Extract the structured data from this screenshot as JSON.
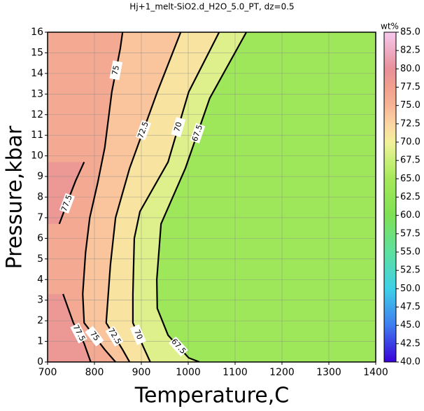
{
  "chart_data": {
    "type": "contour",
    "title": "Hj+1_melt-SiO2.d_H2O_5.0_PT, dz=0.5",
    "x_label": "Temperature,C",
    "y_label": "Pressure,kbar",
    "xlim": [
      700,
      1400
    ],
    "ylim": [
      0,
      16
    ],
    "xticks": [
      700,
      800,
      900,
      1000,
      1100,
      1200,
      1300,
      1400
    ],
    "yticks": [
      0,
      1,
      2,
      3,
      4,
      5,
      6,
      7,
      8,
      9,
      10,
      11,
      12,
      13,
      14,
      15,
      16
    ],
    "grid": true,
    "background_color": "#9fe75a",
    "contours": [
      {
        "level": 67.5,
        "points": [
          [
            1124,
            16
          ],
          [
            1046,
            12.8
          ],
          [
            994,
            9.4
          ],
          [
            942,
            6.7
          ],
          [
            933,
            4
          ],
          [
            934,
            2.6
          ],
          [
            957,
            1.3
          ],
          [
            1001,
            0.2
          ],
          [
            1024,
            0
          ]
        ]
      },
      {
        "level": 70,
        "points": [
          [
            1066,
            16
          ],
          [
            1001,
            13.1
          ],
          [
            957,
            9.7
          ],
          [
            897,
            7.3
          ],
          [
            885,
            6
          ],
          [
            882,
            3.3
          ],
          [
            882,
            1.9
          ],
          [
            904,
            0.75
          ],
          [
            919,
            0
          ]
        ]
      },
      {
        "level": 72.5,
        "points": [
          [
            984,
            16
          ],
          [
            934,
            13.1
          ],
          [
            875,
            9.4
          ],
          [
            845,
            7
          ],
          [
            834,
            4.7
          ],
          [
            825,
            1.9
          ],
          [
            860,
            0.6
          ],
          [
            875,
            0
          ]
        ]
      },
      {
        "level": 75,
        "points": [
          [
            860,
            16
          ],
          [
            855,
            15.2
          ],
          [
            837,
            13.1
          ],
          [
            822,
            10.4
          ],
          [
            807,
            8.7
          ],
          [
            790,
            7
          ],
          [
            781,
            5.3
          ],
          [
            775,
            3.3
          ],
          [
            778,
            1.9
          ],
          [
            822,
            0.6
          ],
          [
            845,
            0
          ]
        ]
      },
      {
        "level": 77.5,
        "points": [
          [
            778,
            9.7
          ],
          [
            760,
            8.8
          ],
          [
            748,
            8.1
          ],
          [
            735,
            7.3
          ],
          [
            725,
            6.7
          ]
        ]
      },
      {
        "level": 77.5,
        "points": [
          [
            733,
            3.3
          ],
          [
            744,
            2.6
          ],
          [
            755,
            1.9
          ],
          [
            778,
            0.9
          ],
          [
            792,
            0
          ]
        ]
      }
    ],
    "colorbar_label": "wt%",
    "colorbar_lim": [
      40,
      85
    ],
    "colorbar_ticks": [
      {
        "value": 40,
        "label": "40.0"
      },
      {
        "value": 42.5,
        "label": "42.5"
      },
      {
        "value": 45,
        "label": "45.0"
      },
      {
        "value": 47.5,
        "label": "47.5"
      },
      {
        "value": 50,
        "label": "50.0"
      },
      {
        "value": 52.5,
        "label": "52.5"
      },
      {
        "value": 55,
        "label": "55.0"
      },
      {
        "value": 57.5,
        "label": "57.5"
      },
      {
        "value": 60,
        "label": "60.0"
      },
      {
        "value": 62.5,
        "label": "62.5"
      },
      {
        "value": 65,
        "label": "65.0"
      },
      {
        "value": 67.5,
        "label": "67.5"
      },
      {
        "value": 70,
        "label": "70.0"
      },
      {
        "value": 72.5,
        "label": "72.5"
      },
      {
        "value": 75,
        "label": "75.0"
      },
      {
        "value": 77.5,
        "label": "77.5"
      },
      {
        "value": 80,
        "label": "80.0"
      },
      {
        "value": 82.5,
        "label": "82.5"
      },
      {
        "value": 85,
        "label": "85.0"
      }
    ],
    "colorscale": [
      {
        "value": 40,
        "color": "#3a00d8"
      },
      {
        "value": 45,
        "color": "#3f7cf0"
      },
      {
        "value": 50,
        "color": "#3fd0e8"
      },
      {
        "value": 55,
        "color": "#5ee0a0"
      },
      {
        "value": 60,
        "color": "#7fe055"
      },
      {
        "value": 65,
        "color": "#a6e85a"
      },
      {
        "value": 67.5,
        "color": "#c9ef7a"
      },
      {
        "value": 70,
        "color": "#f3f09c"
      },
      {
        "value": 72.5,
        "color": "#fcd5a4"
      },
      {
        "value": 75,
        "color": "#f7b496"
      },
      {
        "value": 77.5,
        "color": "#f1a08e"
      },
      {
        "value": 80,
        "color": "#e7909a"
      },
      {
        "value": 85,
        "color": "#f6c8ee"
      }
    ]
  }
}
